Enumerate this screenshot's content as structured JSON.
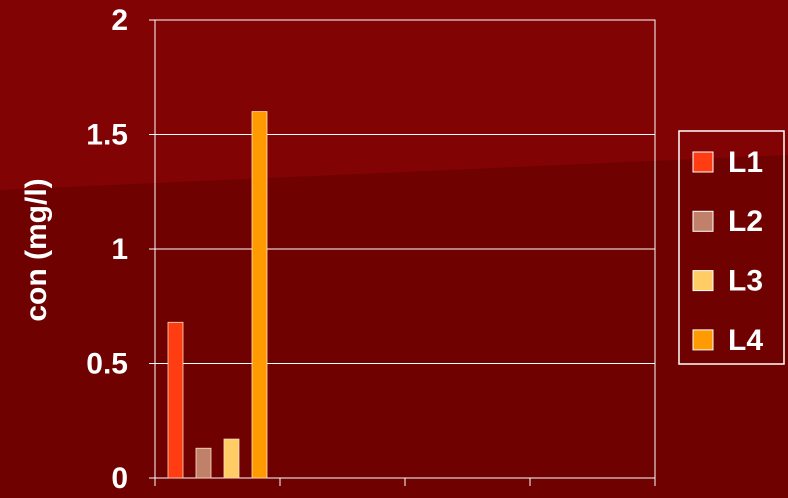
{
  "chart_data": {
    "type": "bar",
    "ylabel": "con (mg/l)",
    "categories": [
      null,
      null,
      null,
      null
    ],
    "series": [
      {
        "name": "L1",
        "color": "#ff3c12",
        "values": [
          0.68,
          null,
          null,
          null
        ]
      },
      {
        "name": "L2",
        "color": "#c0806a",
        "values": [
          0.13,
          null,
          null,
          null
        ]
      },
      {
        "name": "L3",
        "color": "#ffcc66",
        "values": [
          0.17,
          null,
          null,
          null
        ]
      },
      {
        "name": "L4",
        "color": "#ff9a00",
        "values": [
          1.6,
          null,
          null,
          null
        ]
      }
    ],
    "ylim": [
      0,
      2
    ],
    "yticks": [
      0,
      0.5,
      1,
      1.5,
      2
    ],
    "grid": true,
    "legend": "right"
  }
}
